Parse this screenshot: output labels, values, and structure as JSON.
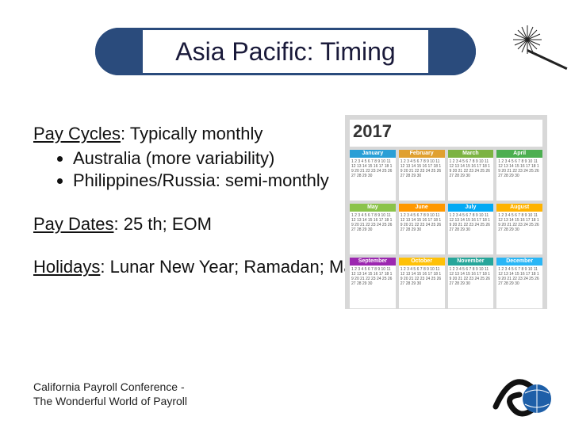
{
  "title": "Asia Pacific: Timing",
  "title_color": "#1a1a3a",
  "pill_border_color": "#2a4b7c",
  "sections": [
    {
      "heading": "Pay Cycles",
      "rest": ": Typically monthly",
      "bullets": [
        "Australia (more variability)",
        "Philippines/Russia: semi-monthly"
      ]
    },
    {
      "heading": "Pay Dates",
      "rest": ": 25 th; EOM",
      "bullets": []
    },
    {
      "heading": "Holidays",
      "rest": ": Lunar New Year; Ramadan; May Day",
      "bullets": []
    }
  ],
  "calendar": {
    "year": "2017",
    "background": "#d8d8d8",
    "months": [
      {
        "name": "January",
        "color": "#2a9fd6"
      },
      {
        "name": "February",
        "color": "#e0a030"
      },
      {
        "name": "March",
        "color": "#7cb342"
      },
      {
        "name": "April",
        "color": "#4caf50"
      },
      {
        "name": "May",
        "color": "#8bc34a"
      },
      {
        "name": "June",
        "color": "#ff9800"
      },
      {
        "name": "July",
        "color": "#03a9f4"
      },
      {
        "name": "August",
        "color": "#ffb300"
      },
      {
        "name": "September",
        "color": "#9c27b0"
      },
      {
        "name": "October",
        "color": "#ffc107"
      },
      {
        "name": "November",
        "color": "#26a69a"
      },
      {
        "name": "December",
        "color": "#29b6f6"
      }
    ],
    "day_filler": "1 2 3 4 5 6 7 8 9 10 11 12 13 14 15 16 17 18 19 20 21 22 23 24 25 26 27 28 29 30"
  },
  "footer": {
    "line1": "California Payroll Conference -",
    "line2": "The Wonderful World of Payroll"
  },
  "logo": {
    "swirl_color": "#111111",
    "globe_color": "#1e5fa8"
  }
}
